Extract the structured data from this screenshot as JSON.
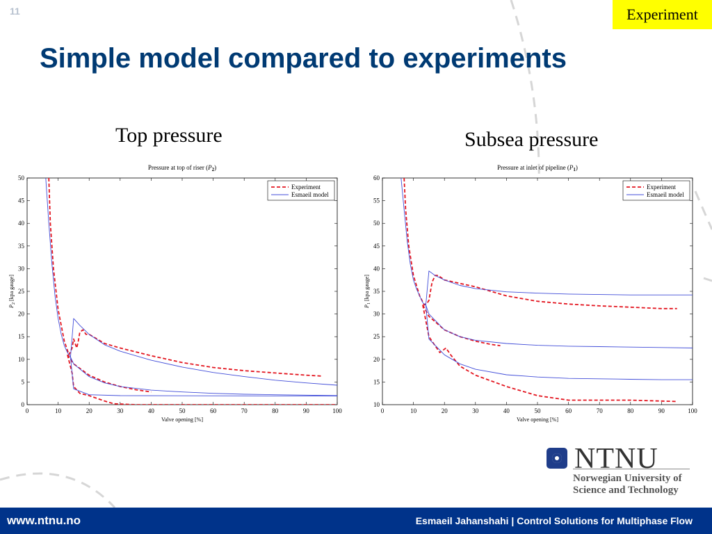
{
  "slide": {
    "number": "11",
    "tag": "Experiment",
    "title": "Simple model compared to experiments"
  },
  "subtitles": {
    "left": "Top pressure",
    "right": "Subsea pressure"
  },
  "logo": {
    "name": "NTNU",
    "line1": "Norwegian University of",
    "line2": "Science and Technology"
  },
  "footer": {
    "url": "www.ntnu.no",
    "credit": "Esmaeil Jahanshahi  |  Control Solutions for Multiphase Flow"
  },
  "colors": {
    "experiment": "#e3141e",
    "model": "#3f4bd8",
    "footer": "#00338a",
    "title": "#003a73"
  },
  "chart_data": [
    {
      "type": "line",
      "title": "Pressure at top of riser (P2)",
      "xlabel": "Valve opening [%]",
      "ylabel": "P2 [kpa gauge]",
      "xlim": [
        0,
        100
      ],
      "ylim": [
        0,
        50
      ],
      "xticks": [
        0,
        10,
        20,
        30,
        40,
        50,
        60,
        70,
        80,
        90,
        100
      ],
      "yticks": [
        0,
        5,
        10,
        15,
        20,
        25,
        30,
        35,
        40,
        45,
        50
      ],
      "legend": {
        "position": "top-right",
        "entries": [
          "Experiment",
          "Esmaeil model"
        ]
      },
      "series": [
        {
          "name": "Experiment",
          "style": "dashed",
          "color": "#e3141e",
          "parts": [
            [
              [
                7,
                50
              ],
              [
                7.5,
                40
              ],
              [
                8.5,
                30
              ],
              [
                10,
                21
              ],
              [
                12,
                14
              ],
              [
                13.5,
                11
              ],
              [
                14.5,
                12.5
              ],
              [
                15,
                14.5
              ],
              [
                15.5,
                13.5
              ],
              [
                16,
                12.5
              ],
              [
                16.5,
                14
              ],
              [
                17,
                16
              ],
              [
                18,
                16.5
              ],
              [
                19,
                15.5
              ],
              [
                20,
                15.5
              ],
              [
                25,
                13.5
              ],
              [
                30,
                12.5
              ],
              [
                40,
                10.8
              ],
              [
                50,
                9.3
              ],
              [
                60,
                8.2
              ],
              [
                70,
                7.5
              ],
              [
                80,
                7
              ],
              [
                90,
                6.5
              ],
              [
                95,
                6.3
              ]
            ],
            [
              [
                13,
                11
              ],
              [
                15,
                9
              ],
              [
                20,
                6.5
              ],
              [
                25,
                5
              ],
              [
                30,
                4
              ],
              [
                35,
                3.3
              ],
              [
                40,
                2.8
              ]
            ],
            [
              [
                13,
                11
              ],
              [
                14.5,
                7
              ],
              [
                15,
                4
              ],
              [
                17,
                2.5
              ],
              [
                20,
                2
              ],
              [
                25,
                0.8
              ],
              [
                28,
                0.2
              ],
              [
                35,
                0
              ],
              [
                100,
                0
              ]
            ]
          ]
        },
        {
          "name": "Esmaeil model",
          "style": "solid",
          "color": "#3f4bd8",
          "parts": [
            [
              [
                6,
                50
              ],
              [
                7,
                40
              ],
              [
                8,
                31
              ],
              [
                9,
                24
              ],
              [
                10,
                19
              ],
              [
                11,
                15.5
              ],
              [
                12,
                13
              ],
              [
                13,
                11.5
              ],
              [
                14,
                10.5
              ],
              [
                15,
                19
              ],
              [
                17,
                17.5
              ],
              [
                20,
                15.5
              ],
              [
                25,
                13.2
              ],
              [
                30,
                11.8
              ],
              [
                40,
                9.8
              ],
              [
                50,
                8.3
              ],
              [
                60,
                7.1
              ],
              [
                70,
                6.2
              ],
              [
                80,
                5.4
              ],
              [
                90,
                4.8
              ],
              [
                100,
                4.3
              ]
            ],
            [
              [
                14,
                10.5
              ],
              [
                15,
                9
              ],
              [
                20,
                6.2
              ],
              [
                25,
                4.8
              ],
              [
                30,
                4
              ],
              [
                40,
                3.2
              ],
              [
                50,
                2.8
              ],
              [
                60,
                2.5
              ],
              [
                70,
                2.3
              ],
              [
                80,
                2.2
              ],
              [
                90,
                2.1
              ],
              [
                100,
                2
              ]
            ],
            [
              [
                14,
                10.5
              ],
              [
                15,
                3.5
              ],
              [
                20,
                2.2
              ],
              [
                30,
                2
              ],
              [
                100,
                1.9
              ]
            ]
          ]
        }
      ]
    },
    {
      "type": "line",
      "title": "Pressure at inlet of pipeline (P1)",
      "xlabel": "Valve opening [%]",
      "ylabel": "P1 [kpa gauge]",
      "xlim": [
        0,
        100
      ],
      "ylim": [
        10,
        60
      ],
      "xticks": [
        0,
        10,
        20,
        30,
        40,
        50,
        60,
        70,
        80,
        90,
        100
      ],
      "yticks": [
        10,
        15,
        20,
        25,
        30,
        35,
        40,
        45,
        50,
        55,
        60
      ],
      "legend": {
        "position": "top-right",
        "entries": [
          "Experiment",
          "Esmaeil model"
        ]
      },
      "series": [
        {
          "name": "Experiment",
          "style": "dashed",
          "color": "#e3141e",
          "parts": [
            [
              [
                7,
                60
              ],
              [
                7.5,
                53
              ],
              [
                8.5,
                45
              ],
              [
                10,
                38.5
              ],
              [
                12,
                34
              ],
              [
                13.5,
                32
              ],
              [
                14.5,
                32.5
              ],
              [
                15,
                33
              ],
              [
                15.5,
                35
              ],
              [
                16,
                37
              ],
              [
                17,
                38.5
              ],
              [
                18,
                38.5
              ],
              [
                20,
                37.5
              ],
              [
                30,
                36
              ],
              [
                40,
                34
              ],
              [
                50,
                32.8
              ],
              [
                60,
                32.2
              ],
              [
                70,
                31.8
              ],
              [
                80,
                31.5
              ],
              [
                90,
                31.2
              ],
              [
                95,
                31.2
              ]
            ],
            [
              [
                13,
                32
              ],
              [
                15,
                29.5
              ],
              [
                20,
                26.5
              ],
              [
                25,
                25
              ],
              [
                30,
                24
              ],
              [
                35,
                23.3
              ],
              [
                38,
                23
              ]
            ],
            [
              [
                13,
                32
              ],
              [
                15,
                25
              ],
              [
                17,
                23
              ],
              [
                18.5,
                21.5
              ],
              [
                19.5,
                22
              ],
              [
                20.5,
                22.5
              ],
              [
                22,
                21
              ],
              [
                25,
                18.5
              ],
              [
                30,
                16.5
              ],
              [
                40,
                14
              ],
              [
                50,
                12
              ],
              [
                60,
                11
              ],
              [
                70,
                11
              ],
              [
                80,
                11
              ],
              [
                90,
                10.8
              ],
              [
                95,
                10.7
              ]
            ]
          ]
        },
        {
          "name": "Esmaeil model",
          "style": "solid",
          "color": "#3f4bd8",
          "parts": [
            [
              [
                6,
                60
              ],
              [
                7,
                53
              ],
              [
                8,
                46
              ],
              [
                9,
                41
              ],
              [
                10,
                37.5
              ],
              [
                11,
                35.5
              ],
              [
                12,
                34
              ],
              [
                13,
                32.5
              ],
              [
                14,
                32
              ],
              [
                15,
                39.5
              ],
              [
                17,
                38.5
              ],
              [
                20,
                37.5
              ],
              [
                25,
                36.3
              ],
              [
                30,
                35.6
              ],
              [
                40,
                34.9
              ],
              [
                50,
                34.6
              ],
              [
                60,
                34.4
              ],
              [
                70,
                34.3
              ],
              [
                80,
                34.2
              ],
              [
                90,
                34.2
              ],
              [
                100,
                34.2
              ]
            ],
            [
              [
                14,
                32
              ],
              [
                15,
                30
              ],
              [
                20,
                26.5
              ],
              [
                25,
                25
              ],
              [
                30,
                24.2
              ],
              [
                40,
                23.5
              ],
              [
                50,
                23.1
              ],
              [
                60,
                22.9
              ],
              [
                70,
                22.8
              ],
              [
                80,
                22.7
              ],
              [
                90,
                22.6
              ],
              [
                100,
                22.5
              ]
            ],
            [
              [
                14,
                32
              ],
              [
                15,
                24.5
              ],
              [
                20,
                21
              ],
              [
                25,
                19
              ],
              [
                30,
                17.8
              ],
              [
                40,
                16.6
              ],
              [
                50,
                16.1
              ],
              [
                60,
                15.8
              ],
              [
                70,
                15.7
              ],
              [
                80,
                15.6
              ],
              [
                90,
                15.5
              ],
              [
                100,
                15.5
              ]
            ]
          ]
        }
      ]
    }
  ]
}
